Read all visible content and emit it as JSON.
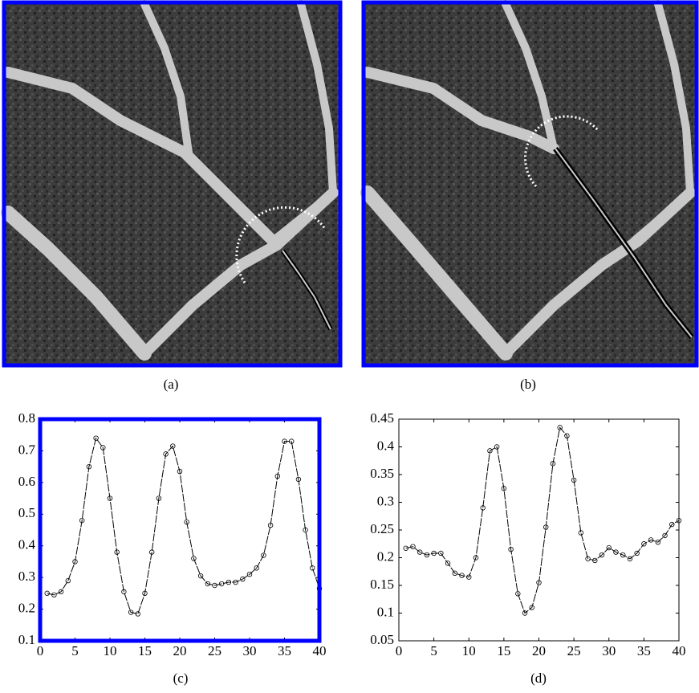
{
  "captions": [
    "(a)",
    "(b)",
    "(c)",
    "(d)"
  ],
  "chart_data": [
    {
      "type": "line",
      "frame_color": "#0000ff",
      "color": "#000000",
      "x": [
        1,
        2,
        3,
        4,
        5,
        6,
        7,
        8,
        9,
        10,
        11,
        12,
        13,
        14,
        15,
        16,
        17,
        18,
        19,
        20,
        21,
        22,
        23,
        24,
        25,
        26,
        27,
        28,
        29,
        30,
        31,
        32,
        33,
        34,
        35,
        36,
        37,
        38,
        39,
        40
      ],
      "values": [
        0.25,
        0.245,
        0.255,
        0.29,
        0.35,
        0.48,
        0.65,
        0.74,
        0.71,
        0.55,
        0.38,
        0.255,
        0.19,
        0.185,
        0.25,
        0.38,
        0.55,
        0.69,
        0.715,
        0.635,
        0.475,
        0.36,
        0.305,
        0.28,
        0.275,
        0.28,
        0.285,
        0.285,
        0.295,
        0.31,
        0.33,
        0.37,
        0.465,
        0.62,
        0.73,
        0.73,
        0.61,
        0.45,
        0.33,
        0.265
      ],
      "xlim": [
        0,
        40
      ],
      "xticks": [
        0,
        5,
        10,
        15,
        20,
        25,
        30,
        35,
        40
      ],
      "ylim": [
        0.1,
        0.8
      ],
      "yticks": [
        0.1,
        0.2,
        0.3,
        0.4,
        0.5,
        0.6,
        0.7,
        0.8
      ]
    },
    {
      "type": "line",
      "frame_color": "#000000",
      "color": "#000000",
      "x": [
        1,
        2,
        3,
        4,
        5,
        6,
        7,
        8,
        9,
        10,
        11,
        12,
        13,
        14,
        15,
        16,
        17,
        18,
        19,
        20,
        21,
        22,
        23,
        24,
        25,
        26,
        27,
        28,
        29,
        30,
        31,
        32,
        33,
        34,
        35,
        36,
        37,
        38,
        39,
        40
      ],
      "values": [
        0.217,
        0.22,
        0.21,
        0.205,
        0.208,
        0.208,
        0.19,
        0.172,
        0.168,
        0.165,
        0.2,
        0.29,
        0.393,
        0.4,
        0.325,
        0.215,
        0.135,
        0.1,
        0.11,
        0.155,
        0.255,
        0.37,
        0.435,
        0.42,
        0.34,
        0.245,
        0.198,
        0.195,
        0.205,
        0.218,
        0.21,
        0.205,
        0.198,
        0.208,
        0.225,
        0.232,
        0.228,
        0.24,
        0.26,
        0.267
      ],
      "xlim": [
        0,
        40
      ],
      "xticks": [
        0,
        5,
        10,
        15,
        20,
        25,
        30,
        35,
        40
      ],
      "ylim": [
        0.05,
        0.45
      ],
      "yticks": [
        0.05,
        0.1,
        0.15,
        0.2,
        0.25,
        0.3,
        0.35,
        0.4,
        0.45
      ]
    }
  ]
}
